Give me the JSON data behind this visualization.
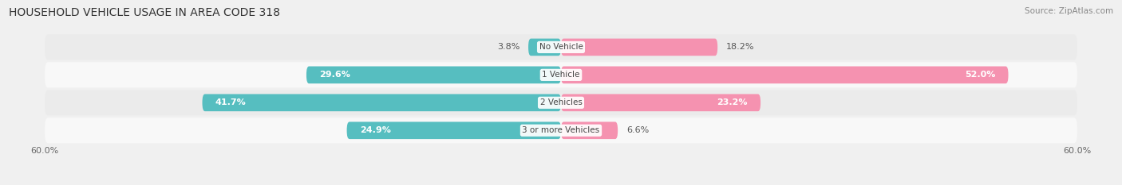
{
  "title": "HOUSEHOLD VEHICLE USAGE IN AREA CODE 318",
  "source": "Source: ZipAtlas.com",
  "categories": [
    "No Vehicle",
    "1 Vehicle",
    "2 Vehicles",
    "3 or more Vehicles"
  ],
  "owner_values": [
    3.8,
    29.6,
    41.7,
    24.9
  ],
  "renter_values": [
    18.2,
    52.0,
    23.2,
    6.6
  ],
  "owner_color": "#56bec0",
  "renter_color": "#f592b0",
  "xlim": [
    -60,
    60
  ],
  "xtick_left": -60.0,
  "xtick_right": 60.0,
  "background_color": "#f0f0f0",
  "title_fontsize": 10,
  "source_fontsize": 7.5,
  "label_fontsize": 8,
  "category_fontsize": 7.5,
  "axis_label_fontsize": 8,
  "bar_height": 0.62,
  "row_bg_light": "#f8f8f8",
  "row_bg_dark": "#ebebeb"
}
